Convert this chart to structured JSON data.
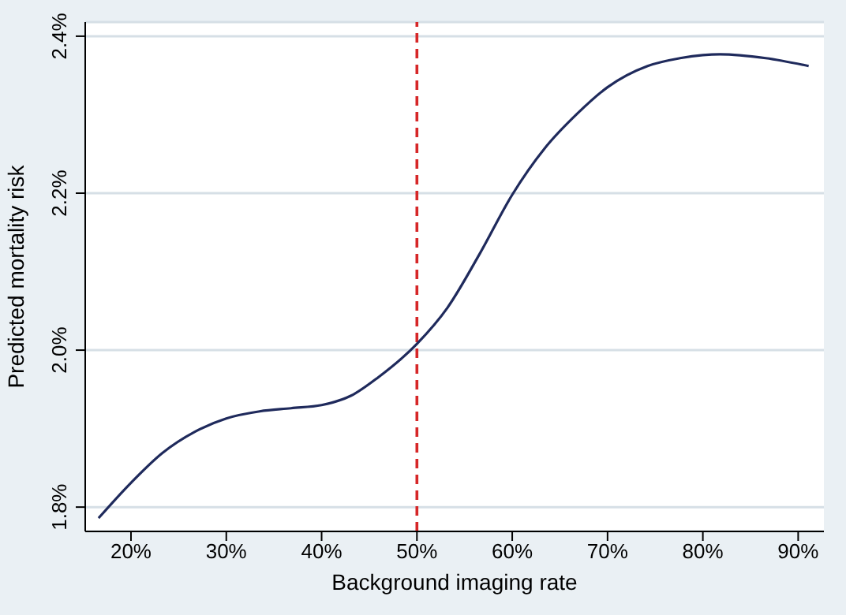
{
  "chart_data": {
    "type": "line",
    "xlabel": "Background imaging rate",
    "ylabel": "Predicted mortality risk",
    "x": [
      16.6,
      20,
      23.3,
      26.7,
      30,
      33.5,
      36.8,
      40,
      43.1,
      45.9,
      50,
      53.2,
      56.6,
      60,
      63.4,
      66.8,
      70,
      74.2,
      77.6,
      80,
      81.8,
      86.6,
      91.1
    ],
    "series": [
      {
        "color": "#1f2a5c",
        "values": [
          1.786,
          1.831,
          1.869,
          1.896,
          1.913,
          1.922,
          1.926,
          1.93,
          1.942,
          1.965,
          2.008,
          2.054,
          2.123,
          2.198,
          2.257,
          2.301,
          2.335,
          2.362,
          2.372,
          2.376,
          2.377,
          2.372,
          2.362
        ]
      }
    ],
    "xlim": [
      15.2,
      92.7
    ],
    "ylim": [
      1.769,
      2.418
    ],
    "xticks": [
      {
        "value": 20,
        "label": "20%"
      },
      {
        "value": 30,
        "label": "30%"
      },
      {
        "value": 40,
        "label": "40%"
      },
      {
        "value": 50,
        "label": "50%"
      },
      {
        "value": 60,
        "label": "60%"
      },
      {
        "value": 70,
        "label": "70%"
      },
      {
        "value": 80,
        "label": "80%"
      },
      {
        "value": 90,
        "label": "90%"
      }
    ],
    "yticks": [
      {
        "value": 1.8,
        "label": "1.8%"
      },
      {
        "value": 2.0,
        "label": "2.0%"
      },
      {
        "value": 2.2,
        "label": "2.2%"
      },
      {
        "value": 2.4,
        "label": "2.4%"
      }
    ],
    "ref_lines": [
      {
        "axis": "x",
        "value": 50,
        "color": "#d62728",
        "line_style": "dashed"
      }
    ],
    "grid": "y",
    "marker": "none",
    "line_style": "solid",
    "legend": false
  }
}
